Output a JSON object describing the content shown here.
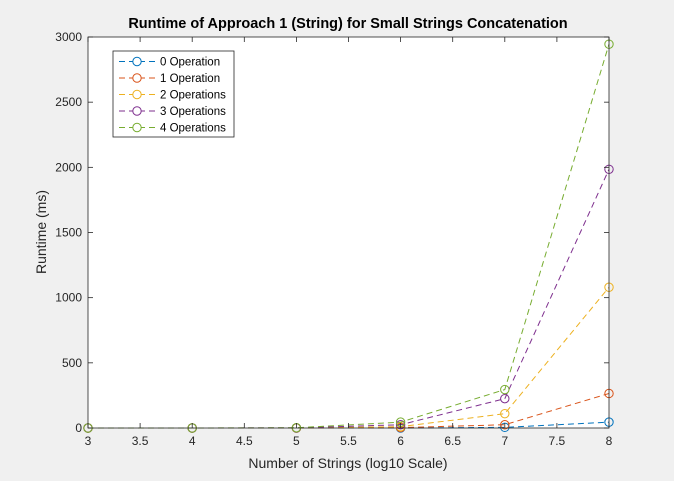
{
  "chart_data": {
    "type": "line",
    "title": "Runtime of Approach 1 (String) for Small Strings Concatenation",
    "xlabel": "Number of Strings (log10 Scale)",
    "ylabel": "Runtime (ms)",
    "xlim": [
      3,
      8
    ],
    "ylim": [
      0,
      3000
    ],
    "xticks": [
      "3",
      "3.5",
      "4",
      "4.5",
      "5",
      "5.5",
      "6",
      "6.5",
      "7",
      "7.5",
      "8"
    ],
    "yticks": [
      "0",
      "500",
      "1000",
      "1500",
      "2000",
      "2500",
      "3000"
    ],
    "grid": false,
    "legend_position": "top-left",
    "x": [
      3,
      4,
      5,
      6,
      7,
      8
    ],
    "series": [
      {
        "name": "0 Operation",
        "color": "#0072BD",
        "values": [
          0,
          0,
          0,
          0,
          5,
          45
        ]
      },
      {
        "name": "1 Operation",
        "color": "#D95319",
        "values": [
          0,
          0,
          0,
          3,
          25,
          265
        ]
      },
      {
        "name": "2 Operations",
        "color": "#EDB120",
        "values": [
          0,
          0,
          0,
          10,
          110,
          1080
        ]
      },
      {
        "name": "3 Operations",
        "color": "#7E2F8E",
        "values": [
          0,
          0,
          1,
          25,
          225,
          1985
        ]
      },
      {
        "name": "4 Operations",
        "color": "#77AC30",
        "values": [
          0,
          0,
          2,
          45,
          295,
          2945
        ]
      }
    ]
  }
}
